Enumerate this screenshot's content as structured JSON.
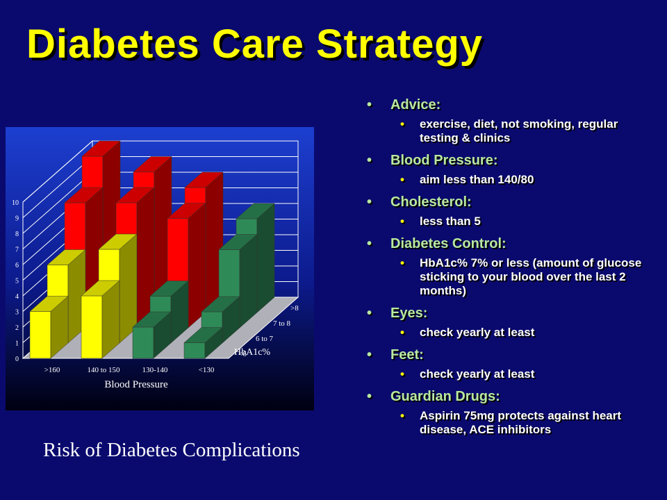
{
  "slide": {
    "title": "Diabetes Care Strategy",
    "caption": "Risk of Diabetes Complications",
    "bullets": [
      {
        "label": "Advice:",
        "sub": "exercise, diet, not smoking, regular testing & clinics"
      },
      {
        "label": "Blood Pressure:",
        "sub": "aim less than 140/80"
      },
      {
        "label": "Cholesterol:",
        "sub": "less than 5"
      },
      {
        "label": "Diabetes Control:",
        "sub": "HbA1c% 7% or less (amount of glucose sticking to your blood over the last 2 months)"
      },
      {
        "label": "Eyes:",
        "sub": "check yearly at least"
      },
      {
        "label": "Feet:",
        "sub": "check yearly at least"
      },
      {
        "label": "Guardian Drugs:",
        "sub": "Aspirin 75mg protects against heart disease, ACE inhibitors"
      }
    ]
  },
  "chart_data": {
    "type": "bar",
    "title": "",
    "xlabel": "Blood Pressure",
    "zlabel": "HbA1c%",
    "categories": [
      ">160",
      "140 to 150",
      "130-140",
      "<130"
    ],
    "series": [
      {
        "name": "<6",
        "values": [
          3,
          4,
          2,
          1
        ]
      },
      {
        "name": "6 to 7",
        "values": [
          5,
          6,
          3,
          2
        ]
      },
      {
        "name": "7 to 8",
        "values": [
          8,
          8,
          7,
          5
        ]
      },
      {
        "name": ">8",
        "values": [
          10,
          9,
          8,
          6
        ]
      }
    ],
    "ylim": [
      0,
      10
    ],
    "yticks": [
      "0",
      "1",
      "2",
      "3",
      "4",
      "5",
      "6",
      "7",
      "8",
      "9",
      "10"
    ],
    "grid": true,
    "colors": {
      "<6": "#ffff00",
      "6 to 7": "#ffff00",
      "7 to 8": "#ff0000",
      ">8": "#ff0000",
      "low_bp": "#2e8b57"
    }
  }
}
